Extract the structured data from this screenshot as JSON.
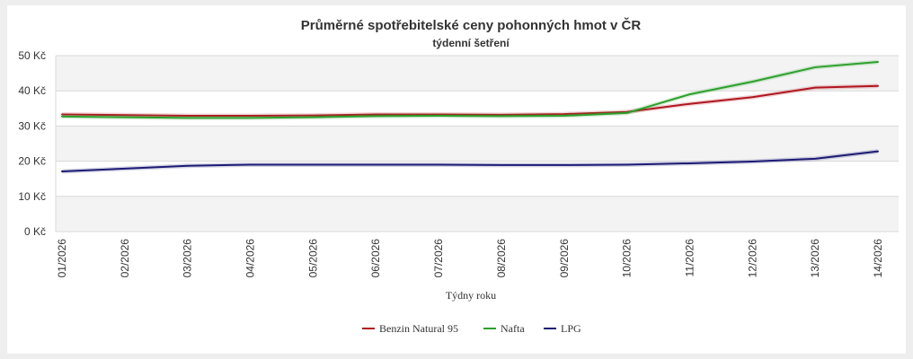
{
  "chart_data": {
    "type": "line",
    "title": "Průměrné spotřebitelské ceny pohonných hmot v ČR",
    "subtitle": "týdenní šetření",
    "xlabel": "Týdny roku",
    "ylabel": "",
    "ylim": [
      0,
      50
    ],
    "yticks": [
      "0 Kč",
      "10 Kč",
      "20 Kč",
      "30 Kč",
      "40 Kč",
      "50 Kč"
    ],
    "categories": [
      "01/2026",
      "02/2026",
      "03/2026",
      "04/2026",
      "05/2026",
      "06/2026",
      "07/2026",
      "08/2026",
      "09/2026",
      "10/2026",
      "11/2026",
      "12/2026",
      "13/2026",
      "14/2026"
    ],
    "grid": "horizontal bands",
    "legend_position": "bottom",
    "series": [
      {
        "name": "Benzin Natural 95",
        "color": "#b0161f",
        "values": [
          33.3,
          33.1,
          32.9,
          32.9,
          33.0,
          33.3,
          33.3,
          33.2,
          33.4,
          34.0,
          36.3,
          38.2,
          40.9,
          41.4
        ]
      },
      {
        "name": "Nafta",
        "color": "#2ca02c",
        "values": [
          32.7,
          32.5,
          32.3,
          32.3,
          32.5,
          32.8,
          32.9,
          32.8,
          32.9,
          33.7,
          39.0,
          42.6,
          46.7,
          48.2
        ]
      },
      {
        "name": "LPG",
        "color": "#1c1a73",
        "values": [
          17.1,
          17.9,
          18.7,
          19.0,
          19.0,
          19.0,
          19.0,
          18.9,
          18.9,
          19.0,
          19.4,
          19.9,
          20.7,
          22.8
        ]
      }
    ]
  }
}
